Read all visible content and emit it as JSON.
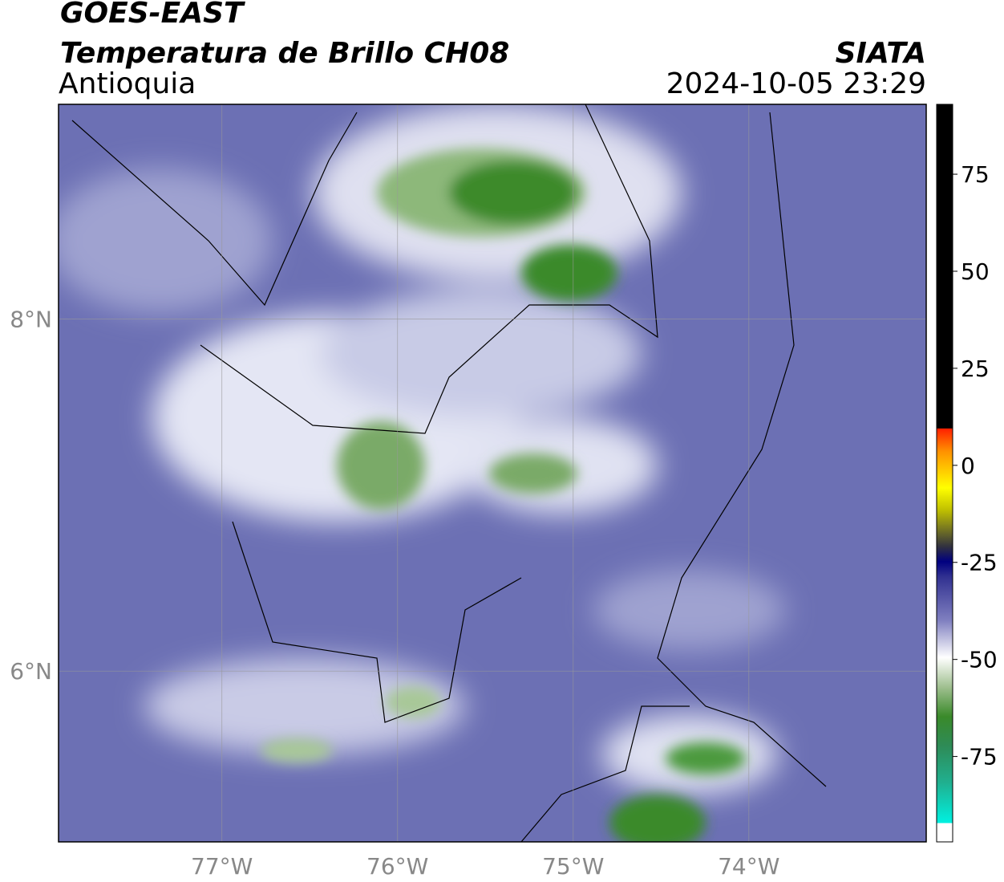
{
  "header": {
    "satellite": "GOES-EAST",
    "product": "Temperatura de Brillo CH08",
    "region": "Antioquia",
    "agency": "SIATA",
    "datetime": "2024-10-05 23:29"
  },
  "map": {
    "xlim": [
      -77.93,
      -72.99
    ],
    "ylim": [
      5.03,
      9.22
    ],
    "xticks": [
      {
        "value": -77,
        "label": "77°W"
      },
      {
        "value": -76,
        "label": "76°W"
      },
      {
        "value": -75,
        "label": "75°W"
      },
      {
        "value": -74,
        "label": "74°W"
      }
    ],
    "yticks": [
      {
        "value": 6,
        "label": "6°N"
      },
      {
        "value": 8,
        "label": "8°N"
      }
    ],
    "grid": true
  },
  "colorbar": {
    "lim": [
      -97,
      93
    ],
    "ticks": [
      75,
      50,
      25,
      0,
      -25,
      -50,
      -75
    ]
  }
}
